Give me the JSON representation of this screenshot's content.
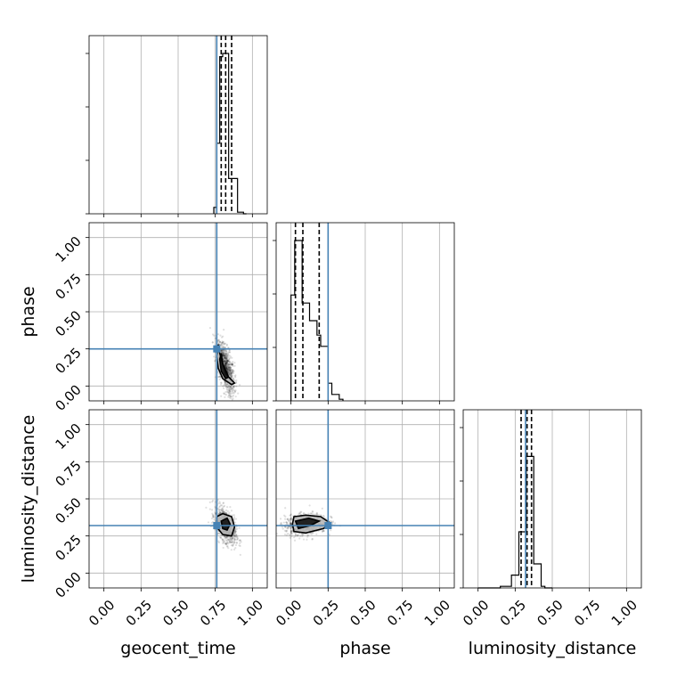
{
  "chart_data": {
    "type": "corner",
    "parameters": [
      "geocent_time",
      "phase",
      "luminosity_distance"
    ],
    "xlabels": [
      "geocent_time",
      "phase",
      "luminosity_distance"
    ],
    "ylabels": [
      "",
      "phase",
      "luminosity_distance"
    ],
    "tick_labels": [
      "0.00",
      "0.25",
      "0.50",
      "0.75",
      "1.00"
    ],
    "axis_range": [
      -0.1,
      1.1
    ],
    "grid": true,
    "truth_color": "#4682b4",
    "truths": {
      "geocent_time": 0.76,
      "phase": 0.25,
      "luminosity_distance": 0.32
    },
    "quantiles": {
      "geocent_time": [
        0.79,
        0.82,
        0.86
      ],
      "phase": [
        0.03,
        0.08,
        0.19
      ],
      "luminosity_distance": [
        0.29,
        0.33,
        0.36
      ]
    },
    "marginals": {
      "geocent_time": {
        "bin_edges": [
          0.74,
          0.76,
          0.78,
          0.8,
          0.82,
          0.84,
          0.86,
          0.88,
          0.9,
          0.92,
          0.94,
          0.96
        ],
        "counts": [
          0.04,
          0.44,
          0.98,
          1.0,
          1.0,
          0.22,
          0.22,
          0.22,
          0.01,
          0.01,
          0.0
        ]
      },
      "phase": {
        "bin_edges": [
          0.0,
          0.025,
          0.05,
          0.075,
          0.1,
          0.125,
          0.15,
          0.175,
          0.2,
          0.225,
          0.25,
          0.275,
          0.3,
          0.325,
          0.35
        ],
        "counts": [
          0.66,
          1.0,
          1.0,
          0.61,
          0.61,
          0.5,
          0.5,
          0.41,
          0.34,
          0.34,
          0.11,
          0.04,
          0.04,
          0.01
        ]
      },
      "luminosity_distance": {
        "bin_edges": [
          0.0,
          0.025,
          0.05,
          0.075,
          0.1,
          0.125,
          0.15,
          0.175,
          0.2,
          0.225,
          0.25,
          0.275,
          0.3,
          0.325,
          0.35,
          0.375,
          0.4,
          0.425,
          0.45,
          0.475,
          0.5
        ],
        "counts": [
          0.0,
          0.0,
          0.0,
          0.0,
          0.0,
          0.0,
          0.01,
          0.01,
          0.01,
          0.08,
          0.08,
          0.35,
          0.35,
          0.82,
          0.82,
          0.15,
          0.15,
          0.01,
          0.0,
          0.0
        ]
      }
    },
    "joint": {
      "phase_vs_geocent_time": {
        "center": [
          0.82,
          0.12
        ],
        "spread": [
          0.03,
          0.09
        ],
        "corr": -0.6,
        "contours": [
          [
            [
              0.77,
              0.28
            ],
            [
              0.78,
              0.22
            ],
            [
              0.82,
              0.08
            ],
            [
              0.88,
              0.02
            ],
            [
              0.86,
              0.01
            ],
            [
              0.8,
              0.05
            ],
            [
              0.77,
              0.12
            ],
            [
              0.76,
              0.2
            ]
          ],
          [
            [
              0.79,
              0.22
            ],
            [
              0.8,
              0.15
            ],
            [
              0.84,
              0.06
            ],
            [
              0.82,
              0.05
            ],
            [
              0.79,
              0.1
            ],
            [
              0.78,
              0.18
            ]
          ]
        ]
      },
      "luminosity_distance_vs_geocent_time": {
        "center": [
          0.82,
          0.32
        ],
        "spread": [
          0.035,
          0.06
        ],
        "corr": -0.5,
        "contours": [
          [
            [
              0.76,
              0.38
            ],
            [
              0.8,
              0.4
            ],
            [
              0.86,
              0.38
            ],
            [
              0.88,
              0.31
            ],
            [
              0.86,
              0.25
            ],
            [
              0.8,
              0.26
            ],
            [
              0.76,
              0.31
            ]
          ],
          [
            [
              0.79,
              0.35
            ],
            [
              0.83,
              0.37
            ],
            [
              0.85,
              0.33
            ],
            [
              0.83,
              0.29
            ],
            [
              0.8,
              0.3
            ]
          ]
        ]
      },
      "luminosity_distance_vs_phase": {
        "center": [
          0.1,
          0.33
        ],
        "spread": [
          0.07,
          0.035
        ],
        "corr": 0.2,
        "contours": [
          [
            [
              0.02,
              0.38
            ],
            [
              0.1,
              0.39
            ],
            [
              0.2,
              0.38
            ],
            [
              0.26,
              0.34
            ],
            [
              0.22,
              0.3
            ],
            [
              0.1,
              0.27
            ],
            [
              0.02,
              0.28
            ],
            [
              0.01,
              0.33
            ]
          ],
          [
            [
              0.03,
              0.35
            ],
            [
              0.12,
              0.37
            ],
            [
              0.19,
              0.35
            ],
            [
              0.13,
              0.32
            ],
            [
              0.05,
              0.3
            ]
          ]
        ]
      }
    }
  }
}
